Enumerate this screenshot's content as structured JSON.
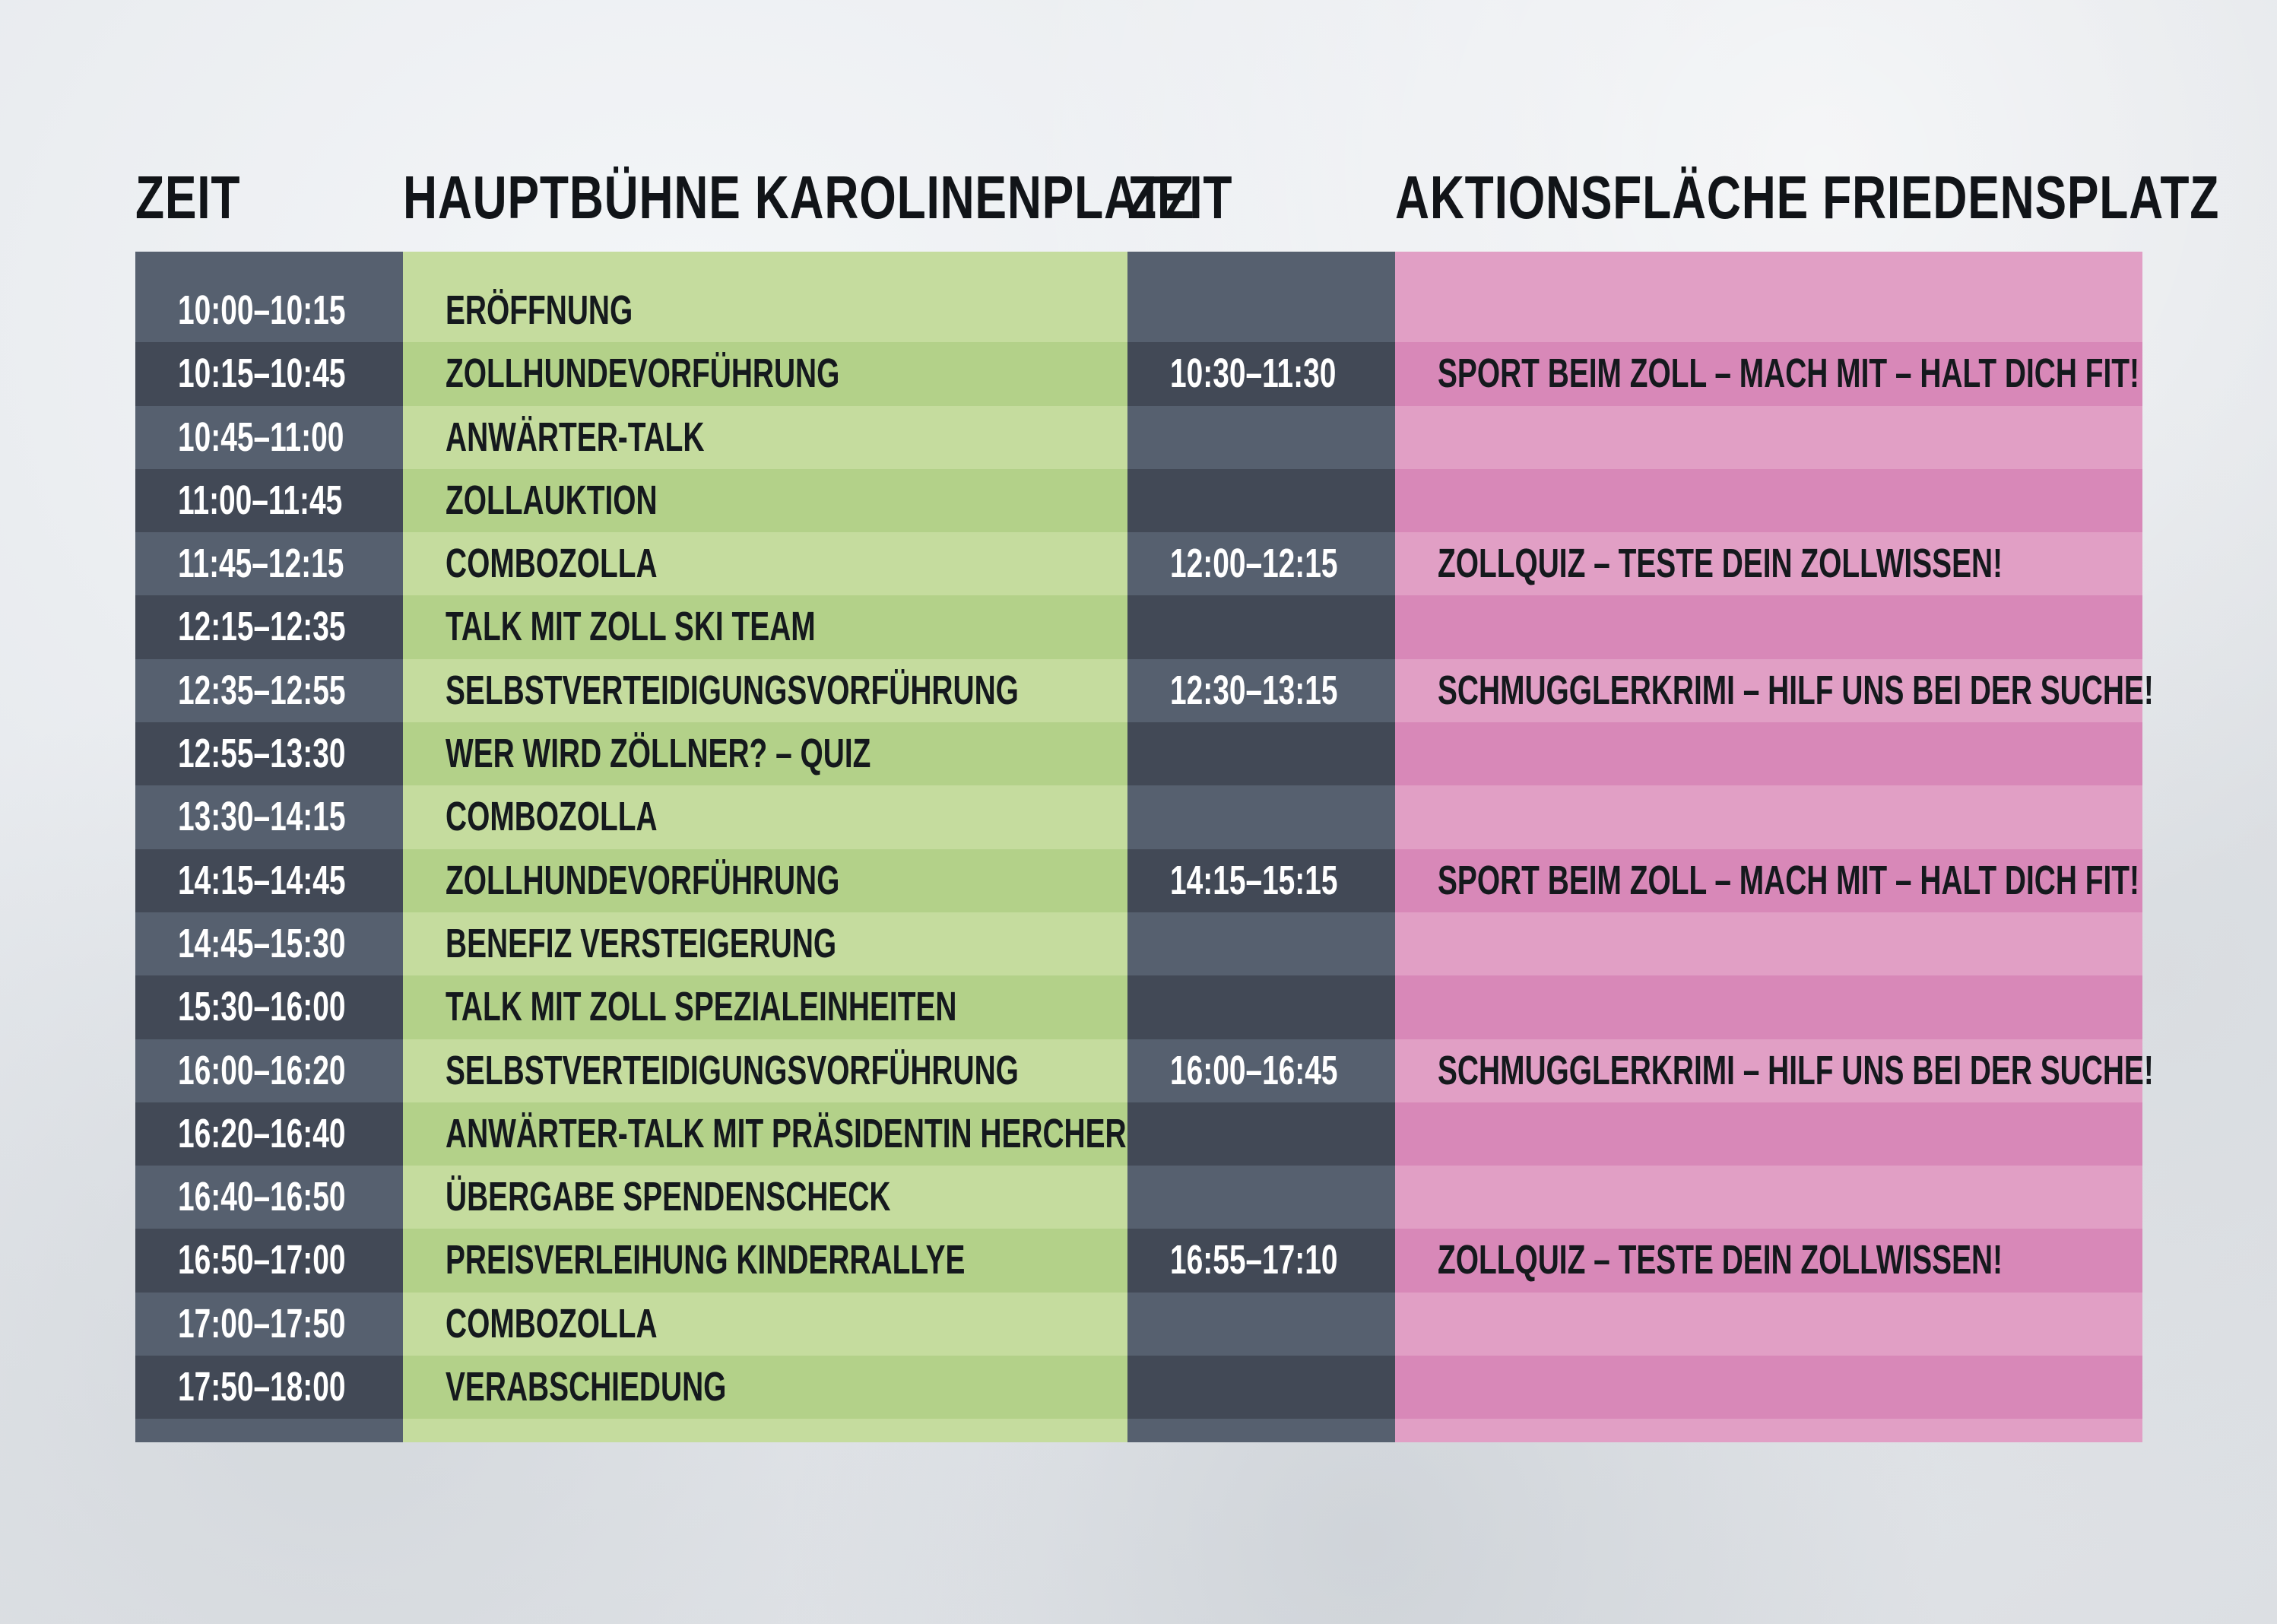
{
  "headers": {
    "zeit_1": "ZEIT",
    "stage_1": "HAUPTBÜHNE KAROLINENPLATZ",
    "zeit_2": "ZEIT",
    "stage_2": "AKTIONSFLÄCHE FRIEDENSPLATZ"
  },
  "colors": {
    "time_light": "#56606f",
    "time_dark": "#424956",
    "green_light": "#c5dc9e",
    "green_dark": "#b3d189",
    "pink_light": "#e19fc5",
    "pink_dark": "#d888b8"
  },
  "rows": [
    {
      "time1": "10:00–10:15",
      "prog1": "ERÖFFNUNG",
      "time2": "",
      "prog2": ""
    },
    {
      "time1": "10:15–10:45",
      "prog1": "ZOLLHUNDEVORFÜHRUNG",
      "time2": "10:30–11:30",
      "prog2": "SPORT BEIM ZOLL – MACH MIT – HALT DICH FIT!"
    },
    {
      "time1": "10:45–11:00",
      "prog1": "ANWÄRTER-TALK",
      "time2": "",
      "prog2": ""
    },
    {
      "time1": "11:00–11:45",
      "prog1": "ZOLLAUKTION",
      "time2": "",
      "prog2": ""
    },
    {
      "time1": "11:45–12:15",
      "prog1": "COMBOZOLLA",
      "time2": "12:00–12:15",
      "prog2": "ZOLLQUIZ – TESTE DEIN ZOLLWISSEN!"
    },
    {
      "time1": "12:15–12:35",
      "prog1": "TALK MIT ZOLL SKI TEAM",
      "time2": "",
      "prog2": ""
    },
    {
      "time1": "12:35–12:55",
      "prog1": "SELBSTVERTEIDIGUNGSVORFÜHRUNG",
      "time2": "12:30–13:15",
      "prog2": "SCHMUGGLERKRIMI – HILF UNS BEI DER SUCHE!"
    },
    {
      "time1": "12:55–13:30",
      "prog1": "WER WIRD ZÖLLNER? – QUIZ",
      "time2": "",
      "prog2": ""
    },
    {
      "time1": "13:30–14:15",
      "prog1": "COMBOZOLLA",
      "time2": "",
      "prog2": ""
    },
    {
      "time1": "14:15–14:45",
      "prog1": "ZOLLHUNDEVORFÜHRUNG",
      "time2": "14:15–15:15",
      "prog2": "SPORT BEIM ZOLL – MACH MIT – HALT DICH FIT!"
    },
    {
      "time1": "14:45–15:30",
      "prog1": "BENEFIZ VERSTEIGERUNG",
      "time2": "",
      "prog2": ""
    },
    {
      "time1": "15:30–16:00",
      "prog1": "TALK MIT ZOLL SPEZIALEINHEITEN",
      "time2": "",
      "prog2": ""
    },
    {
      "time1": "16:00–16:20",
      "prog1": "SELBSTVERTEIDIGUNGSVORFÜHRUNG",
      "time2": "16:00–16:45",
      "prog2": "SCHMUGGLERKRIMI – HILF UNS BEI DER SUCHE!"
    },
    {
      "time1": "16:20–16:40",
      "prog1": "ANWÄRTER-TALK MIT PRÄSIDENTIN HERCHER",
      "time2": "",
      "prog2": ""
    },
    {
      "time1": "16:40–16:50",
      "prog1": "ÜBERGABE SPENDENSCHECK",
      "time2": "",
      "prog2": ""
    },
    {
      "time1": "16:50–17:00",
      "prog1": "PREISVERLEIHUNG KINDERRALLYE",
      "time2": "16:55–17:10",
      "prog2": "ZOLLQUIZ – TESTE DEIN ZOLLWISSEN!"
    },
    {
      "time1": "17:00–17:50",
      "prog1": "COMBOZOLLA",
      "time2": "",
      "prog2": ""
    },
    {
      "time1": "17:50–18:00",
      "prog1": "VERABSCHIEDUNG",
      "time2": "",
      "prog2": ""
    }
  ]
}
